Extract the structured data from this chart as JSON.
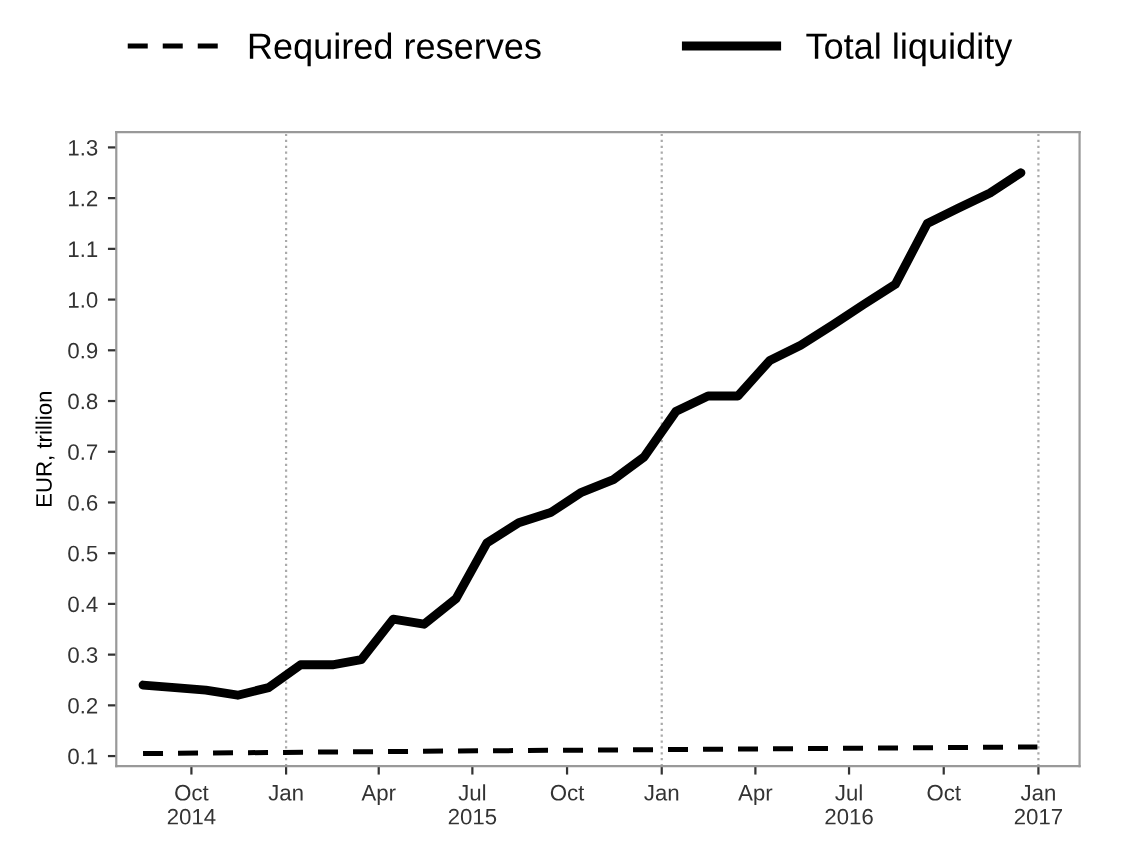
{
  "chart_data": {
    "type": "line",
    "ylabel": "EUR, trillion",
    "legend": "top",
    "x": [
      "2014-08-15",
      "2014-09-15",
      "2014-10-15",
      "2014-11-15",
      "2014-12-15",
      "2015-01-15",
      "2015-02-15",
      "2015-03-15",
      "2015-04-15",
      "2015-05-15",
      "2015-06-15",
      "2015-07-15",
      "2015-08-15",
      "2015-09-15",
      "2015-10-15",
      "2015-11-15",
      "2015-12-15",
      "2016-01-15",
      "2016-02-15",
      "2016-03-15",
      "2016-04-15",
      "2016-05-15",
      "2016-06-15",
      "2016-07-15",
      "2016-08-15",
      "2016-09-15",
      "2016-10-15",
      "2016-11-15",
      "2016-12-15"
    ],
    "series": [
      {
        "name": "Required reserves",
        "color": "#000000",
        "line_style": "dashed",
        "x": [
          "2014-08-15",
          "2015-06-15",
          "2016-01-15",
          "2016-12-31"
        ],
        "values": [
          0.105,
          0.11,
          0.113,
          0.118
        ]
      },
      {
        "name": "Total liquidity",
        "color": "#000000",
        "line_style": "solid",
        "values": [
          0.24,
          0.235,
          0.23,
          0.22,
          0.235,
          0.28,
          0.28,
          0.29,
          0.37,
          0.36,
          0.41,
          0.52,
          0.56,
          0.58,
          0.62,
          0.645,
          0.69,
          0.78,
          0.81,
          0.81,
          0.88,
          0.91,
          0.95,
          0.99,
          1.03,
          1.15,
          1.18,
          1.21,
          1.25
        ]
      }
    ],
    "xlim": [
      "2014-07-20",
      "2017-02-10"
    ],
    "xticks": [
      {
        "value": "2014-10-01",
        "label": "Oct\n2014"
      },
      {
        "value": "2015-01-01",
        "label": "Jan"
      },
      {
        "value": "2015-04-01",
        "label": "Apr"
      },
      {
        "value": "2015-07-01",
        "label": "Jul\n2015"
      },
      {
        "value": "2015-10-01",
        "label": "Oct"
      },
      {
        "value": "2016-01-01",
        "label": "Jan"
      },
      {
        "value": "2016-04-01",
        "label": "Apr"
      },
      {
        "value": "2016-07-01",
        "label": "Jul\n2016"
      },
      {
        "value": "2016-10-01",
        "label": "Oct"
      },
      {
        "value": "2017-01-01",
        "label": "Jan\n2017"
      }
    ],
    "ylim": [
      0.08,
      1.33
    ],
    "yticks": [
      0.1,
      0.2,
      0.3,
      0.4,
      0.5,
      0.6,
      0.7,
      0.8,
      0.9,
      {
        "value": 1.0,
        "label": "1.0"
      },
      1.1,
      1.2,
      1.3
    ],
    "ref_lines": [
      {
        "axis": "x",
        "value": "2015-01-01",
        "label": null,
        "color": "#aaaaaa",
        "line_style": "dotted"
      },
      {
        "axis": "x",
        "value": "2016-01-01",
        "label": null,
        "color": "#aaaaaa",
        "line_style": "dotted"
      },
      {
        "axis": "x",
        "value": "2017-01-01",
        "label": null,
        "color": "#aaaaaa",
        "line_style": "dotted"
      }
    ],
    "grid": false
  }
}
